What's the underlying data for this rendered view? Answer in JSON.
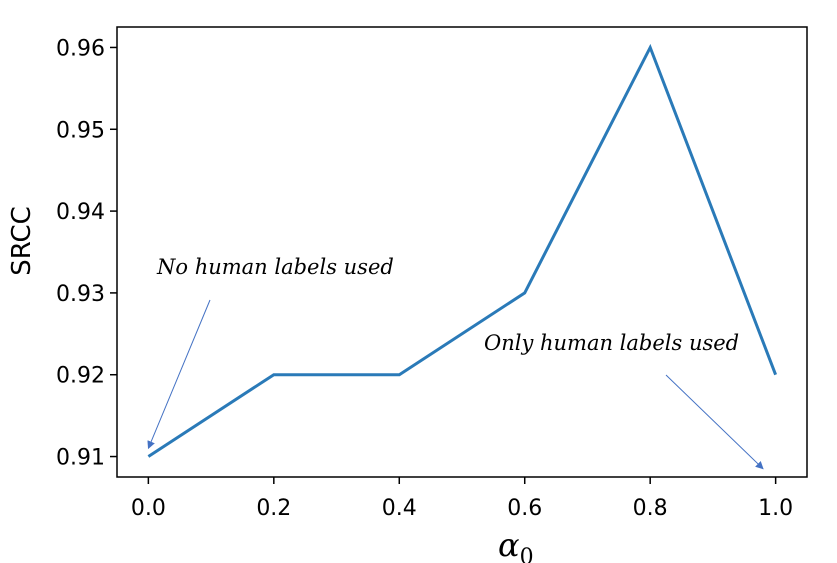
{
  "chart_data": {
    "type": "line",
    "x": [
      0.0,
      0.2,
      0.4,
      0.6,
      0.8,
      1.0
    ],
    "series": [
      {
        "values": [
          0.91,
          0.92,
          0.92,
          0.93,
          0.96,
          0.92
        ],
        "color": "#2a7ab8"
      }
    ],
    "xticks": [
      "0.0",
      "0.2",
      "0.4",
      "0.6",
      "0.8",
      "1.0"
    ],
    "yticks": [
      "0.91",
      "0.92",
      "0.93",
      "0.94",
      "0.95",
      "0.96"
    ],
    "xlim": [
      -0.05,
      1.05
    ],
    "ylim": [
      0.9075,
      0.9625
    ],
    "ylabel": "SRCC",
    "xlabel_symbol": "α",
    "xlabel_subscript": "0",
    "grid": false,
    "annotations": [
      {
        "text": "No human labels used",
        "target_x": 0.0,
        "target_y": 0.911,
        "arrow_color": "#4472c4"
      },
      {
        "text": "Only human labels used",
        "target_x": 0.98,
        "target_y": 0.9085,
        "arrow_color": "#4472c4"
      }
    ]
  }
}
